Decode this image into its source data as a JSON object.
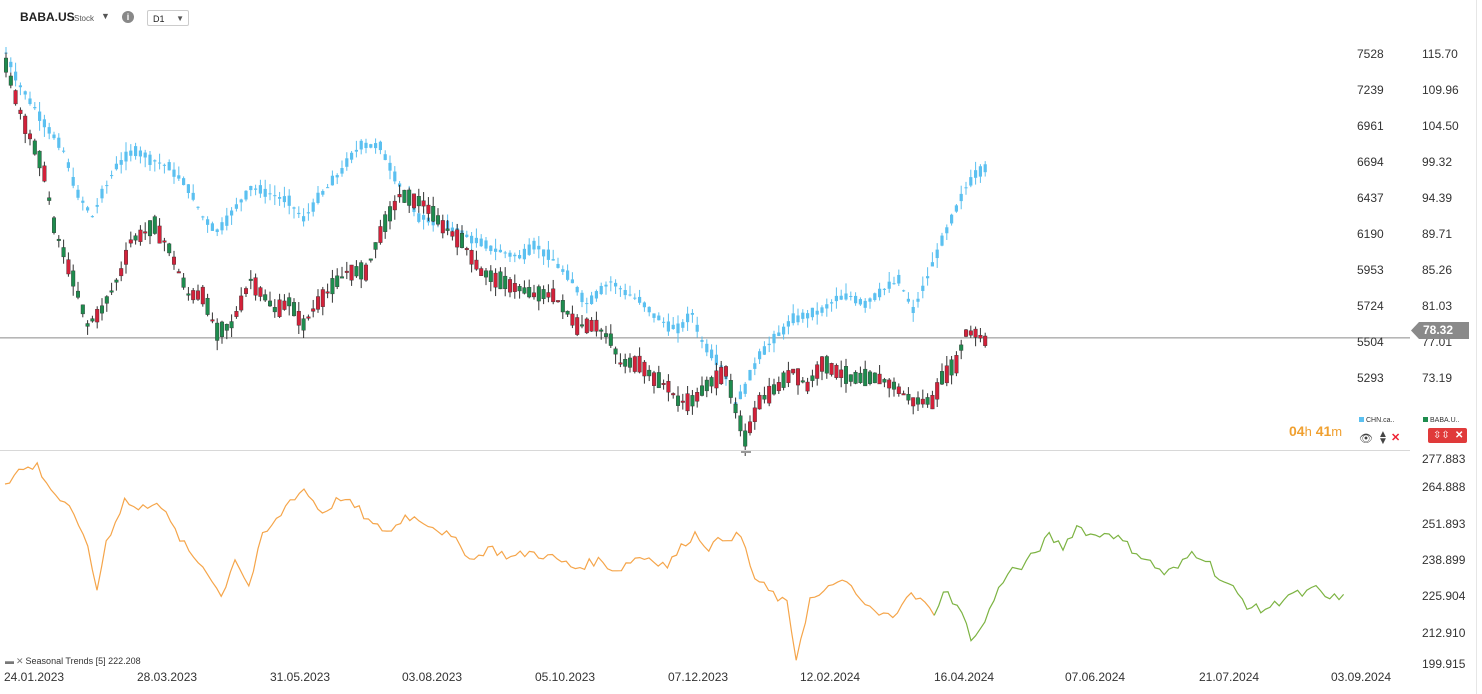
{
  "header": {
    "symbol": "BABA.US",
    "symbol_type": "Stock",
    "timeframe": "D1"
  },
  "price_axis_left": {
    "labels": [
      "7528",
      "7239",
      "6961",
      "6694",
      "6437",
      "6190",
      "5953",
      "5724",
      "5504",
      "5293"
    ]
  },
  "price_axis_right": {
    "labels": [
      "115.70",
      "109.96",
      "104.50",
      "99.32",
      "94.39",
      "89.71",
      "85.26",
      "81.03",
      "77.01",
      "73.19"
    ]
  },
  "current_price": "78.32",
  "countdown": {
    "hours": "04",
    "h_unit": "h",
    "minutes": "41",
    "m_unit": "m"
  },
  "legends": {
    "chn": "CHN.ca..",
    "baba": "BABA.U.."
  },
  "indicator": {
    "label": "Seasonal  Trends  [5]  222.208",
    "axis_labels": [
      "277.883",
      "264.888",
      "251.893",
      "238.899",
      "225.904",
      "212.910",
      "199.915"
    ]
  },
  "x_axis": {
    "labels": [
      "24.01.2023",
      "28.03.2023",
      "31.05.2023",
      "03.08.2023",
      "05.10.2023",
      "07.12.2023",
      "12.02.2024",
      "16.04.2024",
      "07.06.2024",
      "21.07.2024",
      "03.09.2024"
    ]
  },
  "colors": {
    "up": "#1e8c4e",
    "down": "#d3213a",
    "overlay": "#5bc0f0",
    "seasonal_history": "#f5a54a",
    "seasonal_forecast": "#7cb342",
    "price_line": "#8a8a8a"
  },
  "chart_data": [
    {
      "type": "candlestick",
      "series": [
        {
          "name": "BABA.US",
          "unit": "USD",
          "anchors": [
            [
              0,
              114
            ],
            [
              3,
              108
            ],
            [
              8,
              100
            ],
            [
              10,
              93
            ],
            [
              14,
              86
            ],
            [
              17,
              80
            ],
            [
              20,
              82
            ],
            [
              24,
              87
            ],
            [
              26,
              91
            ],
            [
              31,
              93
            ],
            [
              34,
              90
            ],
            [
              38,
              84
            ],
            [
              41,
              84
            ],
            [
              44,
              79
            ],
            [
              47,
              80
            ],
            [
              51,
              86
            ],
            [
              56,
              82
            ],
            [
              59,
              83
            ],
            [
              62,
              80
            ],
            [
              65,
              83
            ],
            [
              71,
              87
            ],
            [
              75,
              87
            ],
            [
              78,
              92
            ],
            [
              82,
              97
            ],
            [
              87,
              96
            ],
            [
              91,
              93
            ],
            [
              95,
              91
            ],
            [
              99,
              87
            ],
            [
              102,
              86
            ],
            [
              106,
              85
            ],
            [
              110,
              84
            ],
            [
              114,
              84
            ],
            [
              119,
              80
            ],
            [
              123,
              80
            ],
            [
              126,
              78
            ],
            [
              128,
              75
            ],
            [
              132,
              75
            ],
            [
              135,
              73
            ],
            [
              138,
              72
            ],
            [
              140,
              70
            ],
            [
              143,
              70
            ],
            [
              146,
              72
            ],
            [
              150,
              74
            ],
            [
              152,
              69
            ],
            [
              154,
              65
            ],
            [
              157,
              70
            ],
            [
              161,
              72
            ],
            [
              164,
              74
            ],
            [
              167,
              72
            ],
            [
              170,
              75
            ],
            [
              173,
              74
            ],
            [
              176,
              73
            ],
            [
              179,
              73
            ],
            [
              182,
              73
            ],
            [
              185,
              72
            ],
            [
              187,
              71
            ],
            [
              189,
              70
            ],
            [
              193,
              70
            ],
            [
              195,
              73
            ],
            [
              198,
              75
            ],
            [
              200,
              79
            ],
            [
              202,
              79
            ],
            [
              204,
              78
            ]
          ]
        },
        {
          "name": "CHN.cash",
          "unit": "points",
          "anchors": [
            [
              0,
              7530
            ],
            [
              3,
              7300
            ],
            [
              8,
              7050
            ],
            [
              12,
              6850
            ],
            [
              15,
              6550
            ],
            [
              18,
              6400
            ],
            [
              20,
              6550
            ],
            [
              23,
              6750
            ],
            [
              27,
              6860
            ],
            [
              30,
              6800
            ],
            [
              34,
              6740
            ],
            [
              38,
              6600
            ],
            [
              41,
              6400
            ],
            [
              44,
              6300
            ],
            [
              47,
              6420
            ],
            [
              51,
              6600
            ],
            [
              55,
              6560
            ],
            [
              59,
              6500
            ],
            [
              62,
              6380
            ],
            [
              65,
              6520
            ],
            [
              70,
              6720
            ],
            [
              74,
              6900
            ],
            [
              78,
              6880
            ],
            [
              82,
              6620
            ],
            [
              86,
              6400
            ],
            [
              90,
              6360
            ],
            [
              94,
              6300
            ],
            [
              98,
              6230
            ],
            [
              102,
              6170
            ],
            [
              107,
              6120
            ],
            [
              110,
              6210
            ],
            [
              114,
              6100
            ],
            [
              118,
              5950
            ],
            [
              121,
              5800
            ],
            [
              124,
              5900
            ],
            [
              126,
              5950
            ],
            [
              129,
              5880
            ],
            [
              132,
              5820
            ],
            [
              135,
              5720
            ],
            [
              138,
              5650
            ],
            [
              140,
              5620
            ],
            [
              143,
              5730
            ],
            [
              145,
              5540
            ],
            [
              148,
              5420
            ],
            [
              150,
              5300
            ],
            [
              152,
              5100
            ],
            [
              154,
              5220
            ],
            [
              157,
              5450
            ],
            [
              160,
              5550
            ],
            [
              164,
              5690
            ],
            [
              167,
              5720
            ],
            [
              170,
              5750
            ],
            [
              173,
              5830
            ],
            [
              176,
              5850
            ],
            [
              179,
              5800
            ],
            [
              182,
              5880
            ],
            [
              186,
              5960
            ],
            [
              189,
              5750
            ],
            [
              191,
              5900
            ],
            [
              194,
              6150
            ],
            [
              196,
              6300
            ],
            [
              198,
              6450
            ],
            [
              200,
              6600
            ],
            [
              202,
              6700
            ],
            [
              204,
              6740
            ]
          ]
        }
      ],
      "candle_count": 205,
      "current_price": 78.32
    },
    {
      "type": "line",
      "title": "Seasonal Trends [5]",
      "ylim": [
        199.915,
        277.883
      ],
      "current_value": 222.208,
      "series": [
        {
          "name": "history",
          "segment": "history",
          "anchors": [
            [
              0,
              268
            ],
            [
              3,
              273
            ],
            [
              7,
              275
            ],
            [
              10,
              266
            ],
            [
              14,
              258
            ],
            [
              17,
              250
            ],
            [
              20,
              228
            ],
            [
              22,
              246
            ],
            [
              26,
              262
            ],
            [
              29,
              258
            ],
            [
              33,
              262
            ],
            [
              37,
              250
            ],
            [
              40,
              242
            ],
            [
              44,
              235
            ],
            [
              47,
              225
            ],
            [
              50,
              240
            ],
            [
              53,
              229
            ],
            [
              56,
              248
            ],
            [
              59,
              254
            ],
            [
              62,
              262
            ],
            [
              65,
              266
            ],
            [
              69,
              257
            ],
            [
              73,
              263
            ],
            [
              77,
              258
            ],
            [
              80,
              252
            ],
            [
              84,
              250
            ],
            [
              87,
              256
            ],
            [
              91,
              254
            ],
            [
              95,
              250
            ],
            [
              98,
              246
            ],
            [
              102,
              239
            ],
            [
              105,
              244
            ],
            [
              110,
              240
            ],
            [
              114,
              242
            ],
            [
              119,
              240
            ],
            [
              124,
              236
            ],
            [
              129,
              239
            ],
            [
              133,
              235
            ],
            [
              137,
              240
            ],
            [
              140,
              240
            ],
            [
              144,
              237
            ],
            [
              148,
              246
            ],
            [
              150,
              249
            ],
            [
              153,
              244
            ],
            [
              157,
              248
            ],
            [
              160,
              248
            ],
            [
              163,
              232
            ],
            [
              167,
              226
            ],
            [
              170,
              222
            ],
            [
              172,
              202
            ],
            [
              175,
              224
            ],
            [
              178,
              226
            ],
            [
              181,
              232
            ],
            [
              184,
              228
            ],
            [
              187,
              222
            ],
            [
              190,
              218
            ],
            [
              193,
              218
            ],
            [
              196,
              226
            ],
            [
              199,
              224
            ],
            [
              202,
              218
            ]
          ]
        },
        {
          "name": "forecast",
          "segment": "forecast",
          "anchors": [
            [
              202,
              218
            ],
            [
              204,
              228
            ],
            [
              207,
              222
            ],
            [
              210,
              210
            ],
            [
              212,
              212
            ],
            [
              215,
              224
            ],
            [
              218,
              235
            ],
            [
              221,
              236
            ],
            [
              224,
              242
            ],
            [
              227,
              248
            ],
            [
              230,
              244
            ],
            [
              233,
              252
            ],
            [
              237,
              248
            ],
            [
              240,
              250
            ],
            [
              243,
              246
            ],
            [
              246,
              242
            ],
            [
              249,
              238
            ],
            [
              252,
              234
            ],
            [
              255,
              236
            ],
            [
              258,
              242
            ],
            [
              261,
              240
            ],
            [
              264,
              232
            ],
            [
              267,
              228
            ],
            [
              270,
              222
            ],
            [
              273,
              220
            ],
            [
              276,
              222
            ],
            [
              279,
              226
            ],
            [
              282,
              226
            ],
            [
              285,
              228
            ],
            [
              288,
              224
            ],
            [
              291,
              226
            ]
          ]
        }
      ]
    }
  ]
}
